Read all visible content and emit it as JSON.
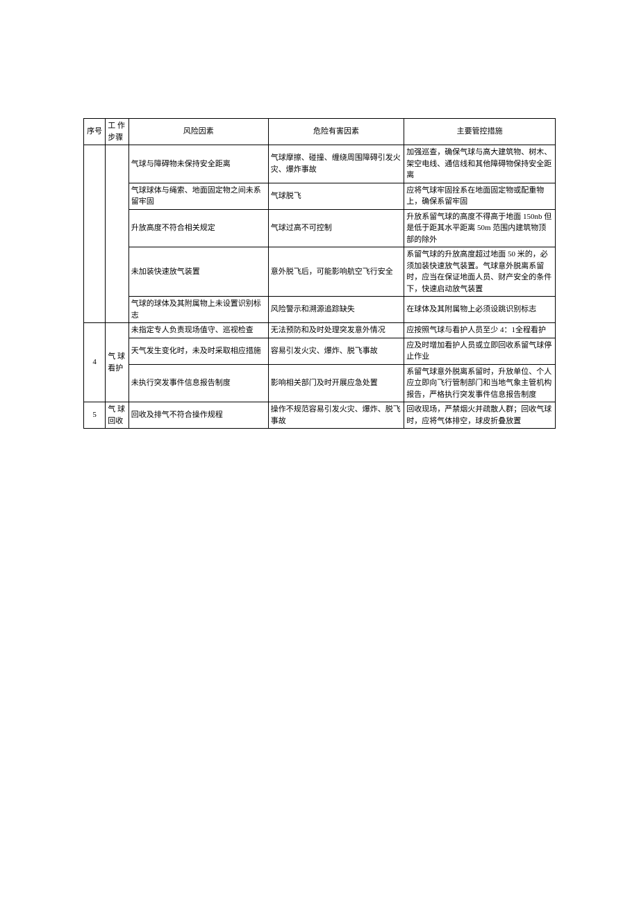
{
  "headers": {
    "seq": "序号",
    "step": "工 作步骤",
    "risk": "风险因素",
    "hazard": "危险有害因素",
    "control": "主要管控措施"
  },
  "group0": {
    "r0": {
      "risk": "气球与障碍物未保持安全距离",
      "hazard": "气球摩擦、碰撞、缠绕周围障碍引发火灾、爆炸事故",
      "control": "加强巡查，确保气球与高大建筑物、树木、架空电线、通信线和其他障碍物保持安全距离"
    },
    "r1": {
      "risk": "气球球体与绳索、地面固定物之间未系留牢固",
      "hazard": "气球脱飞",
      "control": "应将气球牢固拴系在地面固定物或配重物上，确保系留牢固"
    },
    "r2": {
      "risk": "升放高度不符合相关规定",
      "hazard": "气球过高不可控制",
      "control": "升放系留气球的高度不得高于地面 150nb 但是低于距其水平距离 50m 范围内建筑物顶部的除外"
    },
    "r3": {
      "risk": "未加装快速放气装置",
      "hazard": "意外脱飞后，可能影响航空飞行安全",
      "control": "系留气球的升放高度超过地面 50 米的，必须加装快速放气装置。气球意外脱离系留时，应当在保证地面人员、财产安全的条件下，快速启动放气装置"
    },
    "r4": {
      "risk": "气球的球体及其附属物上未设置识别标志",
      "hazard": "风险警示和溯源追踪缺失",
      "control": "在球体及其附属物上必须设跳识别标志"
    }
  },
  "group1": {
    "seq": "4",
    "step": "气 球看护",
    "r0": {
      "risk": "未指定专人负责现场值守、巡视检查",
      "hazard": "无法预防和及时处理突发意外情况",
      "control": "应按照气球与看护人员至少 4：1全程看护"
    },
    "r1": {
      "risk": "天气发生变化时，未及时采取相应措施",
      "hazard": "容易引发火灾、爆炸、脱飞事故",
      "control": "应及时增加看护人员或立即回收系留气球停止作业"
    },
    "r2": {
      "risk": "未执行突发事件信息报告制度",
      "hazard": "影响相关部门及时开展应急处置",
      "control": "系留气球意外脱离系留时，升放单位、个人应立即向飞行管制部门和当地气象主管机构报告，严格执行突发事件信息报告制度"
    }
  },
  "group2": {
    "seq": "5",
    "step": "气 球回收",
    "r0": {
      "risk": "回收及排气不符合操作规程",
      "hazard": "操作不规范容易引发火灾、爆炸、脱飞事故",
      "control": "回收现场，严禁烟火并疏散人群；回收气球时，应将气体排空，球皮折叠放置"
    }
  }
}
